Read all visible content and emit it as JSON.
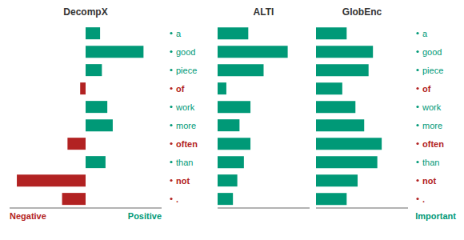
{
  "chart_data": [
    {
      "type": "bar",
      "orientation": "horizontal",
      "stacked": true,
      "title": "DecompX",
      "categories": [
        "a",
        "good",
        "piece",
        "of",
        "work",
        "more",
        "often",
        "than",
        "not",
        "."
      ],
      "series": [
        {
          "name": "Negative",
          "color": "#b22222",
          "values": [
            0.0,
            0.0,
            0.0,
            -0.03,
            0.0,
            0.0,
            -0.1,
            0.0,
            -0.38,
            -0.13
          ]
        },
        {
          "name": "Positive",
          "color": "#009977",
          "values": [
            0.08,
            0.32,
            0.09,
            0.0,
            0.12,
            0.15,
            0.0,
            0.11,
            0.0,
            0.0
          ]
        }
      ],
      "xlim": [
        -0.42,
        0.42
      ],
      "tick_labels": "y",
      "grid": false
    },
    {
      "type": "bar",
      "orientation": "horizontal",
      "title": "ALTI",
      "categories": [
        "a",
        "good",
        "piece",
        "of",
        "work",
        "more",
        "often",
        "than",
        "not",
        "."
      ],
      "values": [
        0.14,
        0.32,
        0.21,
        0.04,
        0.15,
        0.1,
        0.15,
        0.12,
        0.09,
        0.07
      ],
      "color": "#009977",
      "xlim": [
        0,
        0.42
      ],
      "tick_labels": false,
      "grid": false
    },
    {
      "type": "bar",
      "orientation": "horizontal",
      "title": "GlobEnc",
      "xlabel": "Important",
      "categories": [
        "a",
        "good",
        "piece",
        "of",
        "work",
        "more",
        "often",
        "than",
        "not",
        "."
      ],
      "values": [
        0.14,
        0.26,
        0.24,
        0.12,
        0.18,
        0.22,
        0.3,
        0.28,
        0.19,
        0.14
      ],
      "color": "#009977",
      "xlim": [
        0,
        0.42
      ],
      "tick_labels": "y",
      "grid": false
    }
  ]
}
